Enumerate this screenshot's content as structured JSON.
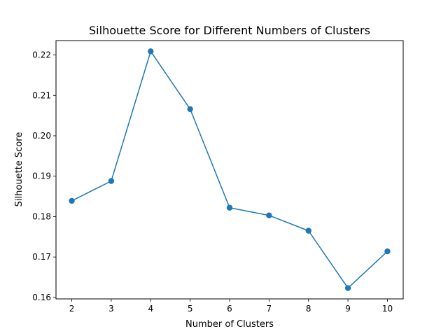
{
  "chart_data": {
    "type": "line",
    "title": "Silhouette Score for Different Numbers of Clusters",
    "xlabel": "Number of Clusters",
    "ylabel": "Silhouette Score",
    "x": [
      2,
      3,
      4,
      5,
      6,
      7,
      8,
      9,
      10
    ],
    "series": [
      {
        "name": "Silhouette Score",
        "color": "#1f77b4",
        "values": [
          0.1839,
          0.1888,
          0.2209,
          0.2066,
          0.1822,
          0.1803,
          0.1765,
          0.1623,
          0.1714
        ]
      }
    ],
    "xlim": [
      1.6,
      10.4
    ],
    "ylim": [
      0.15963,
      0.22356
    ],
    "xticks": [
      2,
      3,
      4,
      5,
      6,
      7,
      8,
      9,
      10
    ],
    "yticks": [
      0.16,
      0.17,
      0.18,
      0.19,
      0.2,
      0.21,
      0.22
    ],
    "ytick_labels": [
      "0.16",
      "0.17",
      "0.18",
      "0.19",
      "0.20",
      "0.21",
      "0.22"
    ],
    "grid": false,
    "legend": "none"
  }
}
